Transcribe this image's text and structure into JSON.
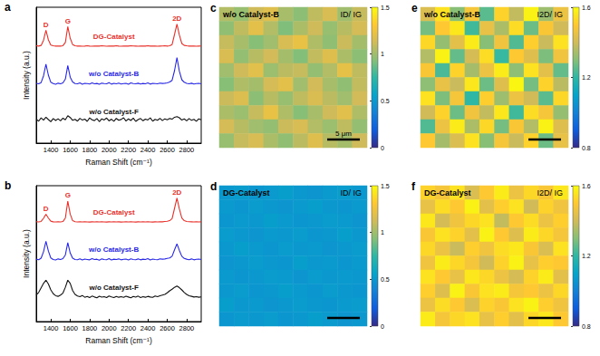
{
  "chart_data": [
    {
      "type": "line",
      "panel": "a",
      "x_label": "Raman Shift (cm⁻¹)",
      "y_label": "Intensity (a.u.)",
      "x": [
        1250,
        1275,
        1300,
        1325,
        1350,
        1375,
        1400,
        1425,
        1450,
        1475,
        1500,
        1525,
        1550,
        1575,
        1600,
        1625,
        1650,
        1675,
        1700,
        1725,
        1750,
        1775,
        1800,
        1825,
        1850,
        1875,
        1900,
        1925,
        1950,
        1975,
        2000,
        2025,
        2050,
        2075,
        2100,
        2125,
        2150,
        2175,
        2200,
        2225,
        2250,
        2275,
        2300,
        2325,
        2350,
        2375,
        2400,
        2425,
        2450,
        2475,
        2500,
        2525,
        2550,
        2575,
        2600,
        2625,
        2650,
        2675,
        2700,
        2725,
        2750,
        2775,
        2800,
        2825,
        2850,
        2875,
        2900,
        2925,
        2950
      ],
      "series": [
        {
          "name": "DG-Catalyst",
          "color": "#e8312a",
          "values": [
            7.52,
            7.5,
            7.55,
            7.95,
            8.72,
            7.98,
            7.58,
            7.52,
            7.5,
            7.51,
            7.5,
            7.53,
            7.78,
            9.0,
            8.1,
            7.62,
            7.52,
            7.5,
            7.51,
            7.49,
            7.5,
            7.52,
            7.5,
            7.49,
            7.51,
            7.5,
            7.5,
            7.52,
            7.51,
            7.49,
            7.5,
            7.51,
            7.5,
            7.52,
            7.5,
            7.49,
            7.5,
            7.51,
            7.5,
            7.52,
            7.51,
            7.5,
            7.49,
            7.5,
            7.51,
            7.5,
            7.52,
            7.5,
            7.51,
            7.5,
            7.49,
            7.5,
            7.51,
            7.52,
            7.5,
            7.53,
            7.62,
            8.4,
            9.2,
            8.35,
            7.7,
            7.55,
            7.52,
            7.5,
            7.51,
            7.5,
            7.49,
            7.5,
            7.51
          ]
        },
        {
          "name": "w/o Catalyst-B",
          "color": "#2828e6",
          "values": [
            4.62,
            4.58,
            4.68,
            5.2,
            6.1,
            5.25,
            4.7,
            4.6,
            4.55,
            4.63,
            4.58,
            4.66,
            4.95,
            6.0,
            5.1,
            4.72,
            4.6,
            4.58,
            4.65,
            4.55,
            4.62,
            4.6,
            4.57,
            4.66,
            4.59,
            4.61,
            4.55,
            4.63,
            4.6,
            4.58,
            4.67,
            4.56,
            4.62,
            4.59,
            4.64,
            4.57,
            4.6,
            4.62,
            4.55,
            4.66,
            4.6,
            4.58,
            4.63,
            4.57,
            4.61,
            4.59,
            4.65,
            4.56,
            4.62,
            4.6,
            4.58,
            4.64,
            4.61,
            4.63,
            4.66,
            4.72,
            4.85,
            5.6,
            6.6,
            5.55,
            4.9,
            4.7,
            4.62,
            4.58,
            4.63,
            4.57,
            4.6,
            4.62,
            4.58
          ]
        },
        {
          "name": "w/o Catalyst-F",
          "color": "#111111",
          "values": [
            1.85,
            1.7,
            1.95,
            1.78,
            2.0,
            1.82,
            1.65,
            1.9,
            1.75,
            1.88,
            1.72,
            1.93,
            1.8,
            2.12,
            1.98,
            1.76,
            1.84,
            1.7,
            1.92,
            1.78,
            1.86,
            1.68,
            1.95,
            1.8,
            1.74,
            1.9,
            1.66,
            1.88,
            1.79,
            1.94,
            1.72,
            1.85,
            1.69,
            1.91,
            1.77,
            1.83,
            1.96,
            1.71,
            1.87,
            1.75,
            1.93,
            1.68,
            1.82,
            1.9,
            1.73,
            1.86,
            1.79,
            1.95,
            1.7,
            1.84,
            1.77,
            1.92,
            1.74,
            1.88,
            1.81,
            1.9,
            1.85,
            2.0,
            2.05,
            1.96,
            1.78,
            1.87,
            1.72,
            1.9,
            1.76,
            1.84,
            1.69,
            1.88,
            1.8
          ]
        }
      ],
      "annotations": [
        {
          "text": "D",
          "x": 1350
        },
        {
          "text": "G",
          "x": 1575
        },
        {
          "text": "2D",
          "x": 2700
        }
      ],
      "xlim": [
        1250,
        2950
      ],
      "xticks": [
        1400,
        1600,
        1800,
        2000,
        2200,
        2400,
        2600,
        2800
      ],
      "ylim": [
        0,
        10.5
      ],
      "tick_labels": "x",
      "grid": false
    },
    {
      "type": "line",
      "panel": "b",
      "x_label": "Raman Shift (cm⁻¹)",
      "y_label": "Intensity (a.u.)",
      "x": [
        1250,
        1275,
        1300,
        1325,
        1350,
        1375,
        1400,
        1425,
        1450,
        1475,
        1500,
        1525,
        1550,
        1575,
        1600,
        1625,
        1650,
        1675,
        1700,
        1725,
        1750,
        1775,
        1800,
        1825,
        1850,
        1875,
        1900,
        1925,
        1950,
        1975,
        2000,
        2025,
        2050,
        2075,
        2100,
        2125,
        2150,
        2175,
        2200,
        2225,
        2250,
        2275,
        2300,
        2325,
        2350,
        2375,
        2400,
        2425,
        2450,
        2475,
        2500,
        2525,
        2550,
        2575,
        2600,
        2625,
        2650,
        2675,
        2700,
        2725,
        2750,
        2775,
        2800,
        2825,
        2850,
        2875,
        2900,
        2925,
        2950
      ],
      "series": [
        {
          "name": "DG-Catalyst",
          "color": "#e8312a",
          "values": [
            7.72,
            7.7,
            7.74,
            7.98,
            8.3,
            8.0,
            7.76,
            7.71,
            7.7,
            7.72,
            7.7,
            7.73,
            8.0,
            9.3,
            8.3,
            7.8,
            7.72,
            7.7,
            7.71,
            7.7,
            7.72,
            7.7,
            7.69,
            7.71,
            7.7,
            7.72,
            7.7,
            7.71,
            7.7,
            7.69,
            7.71,
            7.7,
            7.72,
            7.7,
            7.71,
            7.69,
            7.7,
            7.72,
            7.7,
            7.71,
            7.7,
            7.69,
            7.71,
            7.7,
            7.72,
            7.7,
            7.71,
            7.7,
            7.69,
            7.71,
            7.7,
            7.72,
            7.71,
            7.73,
            7.75,
            7.8,
            7.95,
            8.75,
            9.55,
            8.7,
            8.0,
            7.8,
            7.74,
            7.72,
            7.71,
            7.7,
            7.72,
            7.7,
            7.71
          ]
        },
        {
          "name": "w/o Catalyst-B",
          "color": "#2828e6",
          "values": [
            4.82,
            4.78,
            4.9,
            5.4,
            6.2,
            5.45,
            4.92,
            4.8,
            4.76,
            4.84,
            4.79,
            4.86,
            5.15,
            6.1,
            5.3,
            4.9,
            4.8,
            4.78,
            4.85,
            4.76,
            4.83,
            4.8,
            4.77,
            4.86,
            4.79,
            4.82,
            4.75,
            4.84,
            4.8,
            4.78,
            4.87,
            4.76,
            4.82,
            4.79,
            4.84,
            4.77,
            4.81,
            4.83,
            4.76,
            4.85,
            4.8,
            4.78,
            4.84,
            4.77,
            4.82,
            4.79,
            4.86,
            4.76,
            4.83,
            4.8,
            4.78,
            4.85,
            4.82,
            4.84,
            4.88,
            4.92,
            5.05,
            5.55,
            6.0,
            5.5,
            5.05,
            4.88,
            4.82,
            4.78,
            4.84,
            4.77,
            4.81,
            4.83,
            4.79
          ]
        },
        {
          "name": "w/o Catalyst-F",
          "color": "#111111",
          "values": [
            2.05,
            2.25,
            2.6,
            2.95,
            3.2,
            2.9,
            2.45,
            2.15,
            2.0,
            1.95,
            2.05,
            2.2,
            2.65,
            3.2,
            2.95,
            2.4,
            2.1,
            1.98,
            1.92,
            2.02,
            1.88,
            1.95,
            1.85,
            1.97,
            1.9,
            1.84,
            1.96,
            1.89,
            1.93,
            1.86,
            1.98,
            1.91,
            1.85,
            1.95,
            1.88,
            1.92,
            1.87,
            1.96,
            1.9,
            1.84,
            1.94,
            1.89,
            1.97,
            1.86,
            1.92,
            1.88,
            1.95,
            1.9,
            1.87,
            1.98,
            1.93,
            2.0,
            2.05,
            2.1,
            2.22,
            2.38,
            2.5,
            2.65,
            2.75,
            2.62,
            2.45,
            2.25,
            2.1,
            2.0,
            1.95,
            1.9,
            1.93,
            1.88,
            1.91
          ]
        }
      ],
      "annotations": [
        {
          "text": "D",
          "x": 1350
        },
        {
          "text": "G",
          "x": 1575
        },
        {
          "text": "2D",
          "x": 2700
        }
      ],
      "xlim": [
        1250,
        2950
      ],
      "xticks": [
        1400,
        1600,
        1800,
        2000,
        2200,
        2400,
        2600,
        2800
      ],
      "ylim": [
        0,
        10.5
      ],
      "tick_labels": "x",
      "grid": false
    },
    {
      "type": "heatmap",
      "panel": "c",
      "title": "w/o Catalyst-B",
      "metric": "ID/ IG",
      "scale_bar": "5 μm",
      "tick_labels": false,
      "cells": [
        [
          1.05,
          0.98,
          1.12,
          1.18,
          1.02,
          0.95,
          1.08,
          1.15,
          1.0,
          1.1
        ],
        [
          0.96,
          1.08,
          1.2,
          1.05,
          0.92,
          1.03,
          1.12,
          0.98,
          1.06,
          1.14
        ],
        [
          1.1,
          1.02,
          0.94,
          1.0,
          1.15,
          1.22,
          1.04,
          0.96,
          1.11,
          1.01
        ],
        [
          1.16,
          0.97,
          1.06,
          1.13,
          1.01,
          0.93,
          1.09,
          1.18,
          1.03,
          0.95
        ],
        [
          1.0,
          1.12,
          1.19,
          0.99,
          1.07,
          1.1,
          0.97,
          1.05,
          1.21,
          1.08
        ],
        [
          0.94,
          1.04,
          1.01,
          1.14,
          1.2,
          1.0,
          1.13,
          1.02,
          0.96,
          1.09
        ],
        [
          1.11,
          1.17,
          0.95,
          1.06,
          0.98,
          1.08,
          1.16,
          1.07,
          1.0,
          1.13
        ],
        [
          1.03,
          0.99,
          1.1,
          1.22,
          1.04,
          0.94,
          1.02,
          1.12,
          1.19,
          1.04
        ],
        [
          1.14,
          1.06,
          1.0,
          0.97,
          1.11,
          1.15,
          1.05,
          0.99,
          1.08,
          0.97
        ],
        [
          0.98,
          1.1,
          1.15,
          1.03,
          0.96,
          1.07,
          1.18,
          1.06,
          1.01,
          1.12
        ]
      ],
      "colorbar": {
        "range": [
          0,
          1.5
        ],
        "ticks": [
          0,
          0.5,
          1,
          1.5
        ]
      }
    },
    {
      "type": "heatmap",
      "panel": "d",
      "title": "DG-Catalyst",
      "metric": "ID/ IG",
      "tick_labels": false,
      "cells": [
        [
          0.5,
          0.52,
          0.49,
          0.51,
          0.53,
          0.5,
          0.48,
          0.51,
          0.52,
          0.5
        ],
        [
          0.51,
          0.49,
          0.52,
          0.5,
          0.48,
          0.51,
          0.53,
          0.5,
          0.49,
          0.51
        ],
        [
          0.49,
          0.51,
          0.5,
          0.53,
          0.51,
          0.49,
          0.5,
          0.52,
          0.51,
          0.48
        ],
        [
          0.52,
          0.5,
          0.48,
          0.51,
          0.5,
          0.52,
          0.49,
          0.5,
          0.53,
          0.5
        ],
        [
          0.5,
          0.53,
          0.51,
          0.49,
          0.52,
          0.5,
          0.51,
          0.48,
          0.5,
          0.52
        ],
        [
          0.48,
          0.5,
          0.52,
          0.5,
          0.49,
          0.53,
          0.5,
          0.51,
          0.49,
          0.51
        ],
        [
          0.51,
          0.49,
          0.5,
          0.52,
          0.51,
          0.48,
          0.52,
          0.5,
          0.51,
          0.5
        ],
        [
          0.5,
          0.52,
          0.49,
          0.5,
          0.53,
          0.51,
          0.49,
          0.52,
          0.5,
          0.49
        ],
        [
          0.53,
          0.5,
          0.51,
          0.48,
          0.5,
          0.52,
          0.5,
          0.49,
          0.51,
          0.52
        ],
        [
          0.49,
          0.51,
          0.5,
          0.52,
          0.49,
          0.5,
          0.53,
          0.51,
          0.48,
          0.5
        ]
      ],
      "colorbar": {
        "range": [
          0,
          1.5
        ],
        "ticks": [
          0,
          0.5,
          1,
          1.5
        ]
      }
    },
    {
      "type": "heatmap",
      "panel": "e",
      "title": "w/o Catalyst-B",
      "metric": "I2D/ IG",
      "tick_labels": false,
      "cells": [
        [
          1.42,
          1.55,
          1.3,
          1.48,
          1.25,
          1.52,
          1.38,
          1.58,
          1.33,
          1.46
        ],
        [
          1.28,
          1.5,
          1.56,
          1.22,
          1.45,
          1.35,
          1.54,
          1.27,
          1.49,
          1.4
        ],
        [
          1.53,
          1.32,
          1.44,
          1.57,
          1.3,
          1.47,
          1.24,
          1.51,
          1.39,
          1.55
        ],
        [
          1.36,
          1.58,
          1.26,
          1.41,
          1.54,
          1.21,
          1.5,
          1.43,
          1.29,
          1.47
        ],
        [
          1.49,
          1.23,
          1.52,
          1.34,
          1.46,
          1.57,
          1.31,
          1.55,
          1.44,
          1.26
        ],
        [
          1.31,
          1.45,
          1.39,
          1.56,
          1.27,
          1.43,
          1.59,
          1.28,
          1.52,
          1.37
        ],
        [
          1.55,
          1.29,
          1.48,
          1.2,
          1.51,
          1.33,
          1.46,
          1.4,
          1.25,
          1.53
        ],
        [
          1.4,
          1.52,
          1.27,
          1.47,
          1.38,
          1.56,
          1.22,
          1.54,
          1.48,
          1.32
        ],
        [
          1.24,
          1.46,
          1.57,
          1.35,
          1.53,
          1.28,
          1.49,
          1.36,
          1.58,
          1.43
        ],
        [
          1.5,
          1.34,
          1.42,
          1.55,
          1.3,
          1.48,
          1.39,
          1.52,
          1.27,
          1.45
        ]
      ],
      "colorbar": {
        "range": [
          0.8,
          1.6
        ],
        "ticks": [
          0.8,
          1.2,
          1.6
        ]
      }
    },
    {
      "type": "heatmap",
      "panel": "f",
      "title": "DG-Catalyst",
      "metric": "I2D/ IG",
      "tick_labels": false,
      "cells": [
        [
          1.52,
          1.48,
          1.55,
          1.42,
          1.5,
          1.57,
          1.46,
          1.53,
          1.49,
          1.56
        ],
        [
          1.45,
          1.54,
          1.5,
          1.58,
          1.44,
          1.51,
          1.55,
          1.4,
          1.52,
          1.47
        ],
        [
          1.56,
          1.41,
          1.47,
          1.53,
          1.55,
          1.38,
          1.5,
          1.54,
          1.46,
          1.51
        ],
        [
          1.49,
          1.55,
          1.52,
          1.44,
          1.58,
          1.5,
          1.43,
          1.57,
          1.53,
          1.48
        ],
        [
          1.53,
          1.46,
          1.39,
          1.51,
          1.47,
          1.54,
          1.56,
          1.49,
          1.42,
          1.55
        ],
        [
          1.47,
          1.57,
          1.53,
          1.48,
          1.4,
          1.52,
          1.58,
          1.45,
          1.51,
          1.5
        ],
        [
          1.55,
          1.5,
          1.45,
          1.56,
          1.53,
          1.46,
          1.41,
          1.52,
          1.57,
          1.44
        ],
        [
          1.51,
          1.43,
          1.58,
          1.49,
          1.55,
          1.57,
          1.48,
          1.5,
          1.46,
          1.53
        ],
        [
          1.46,
          1.54,
          1.5,
          1.42,
          1.52,
          1.49,
          1.55,
          1.58,
          1.51,
          1.47
        ],
        [
          1.57,
          1.48,
          1.53,
          1.55,
          1.45,
          1.51,
          1.44,
          1.53,
          1.56,
          1.5
        ]
      ],
      "colorbar": {
        "range": [
          0.8,
          1.6
        ],
        "ticks": [
          0.8,
          1.2,
          1.6
        ]
      }
    }
  ]
}
